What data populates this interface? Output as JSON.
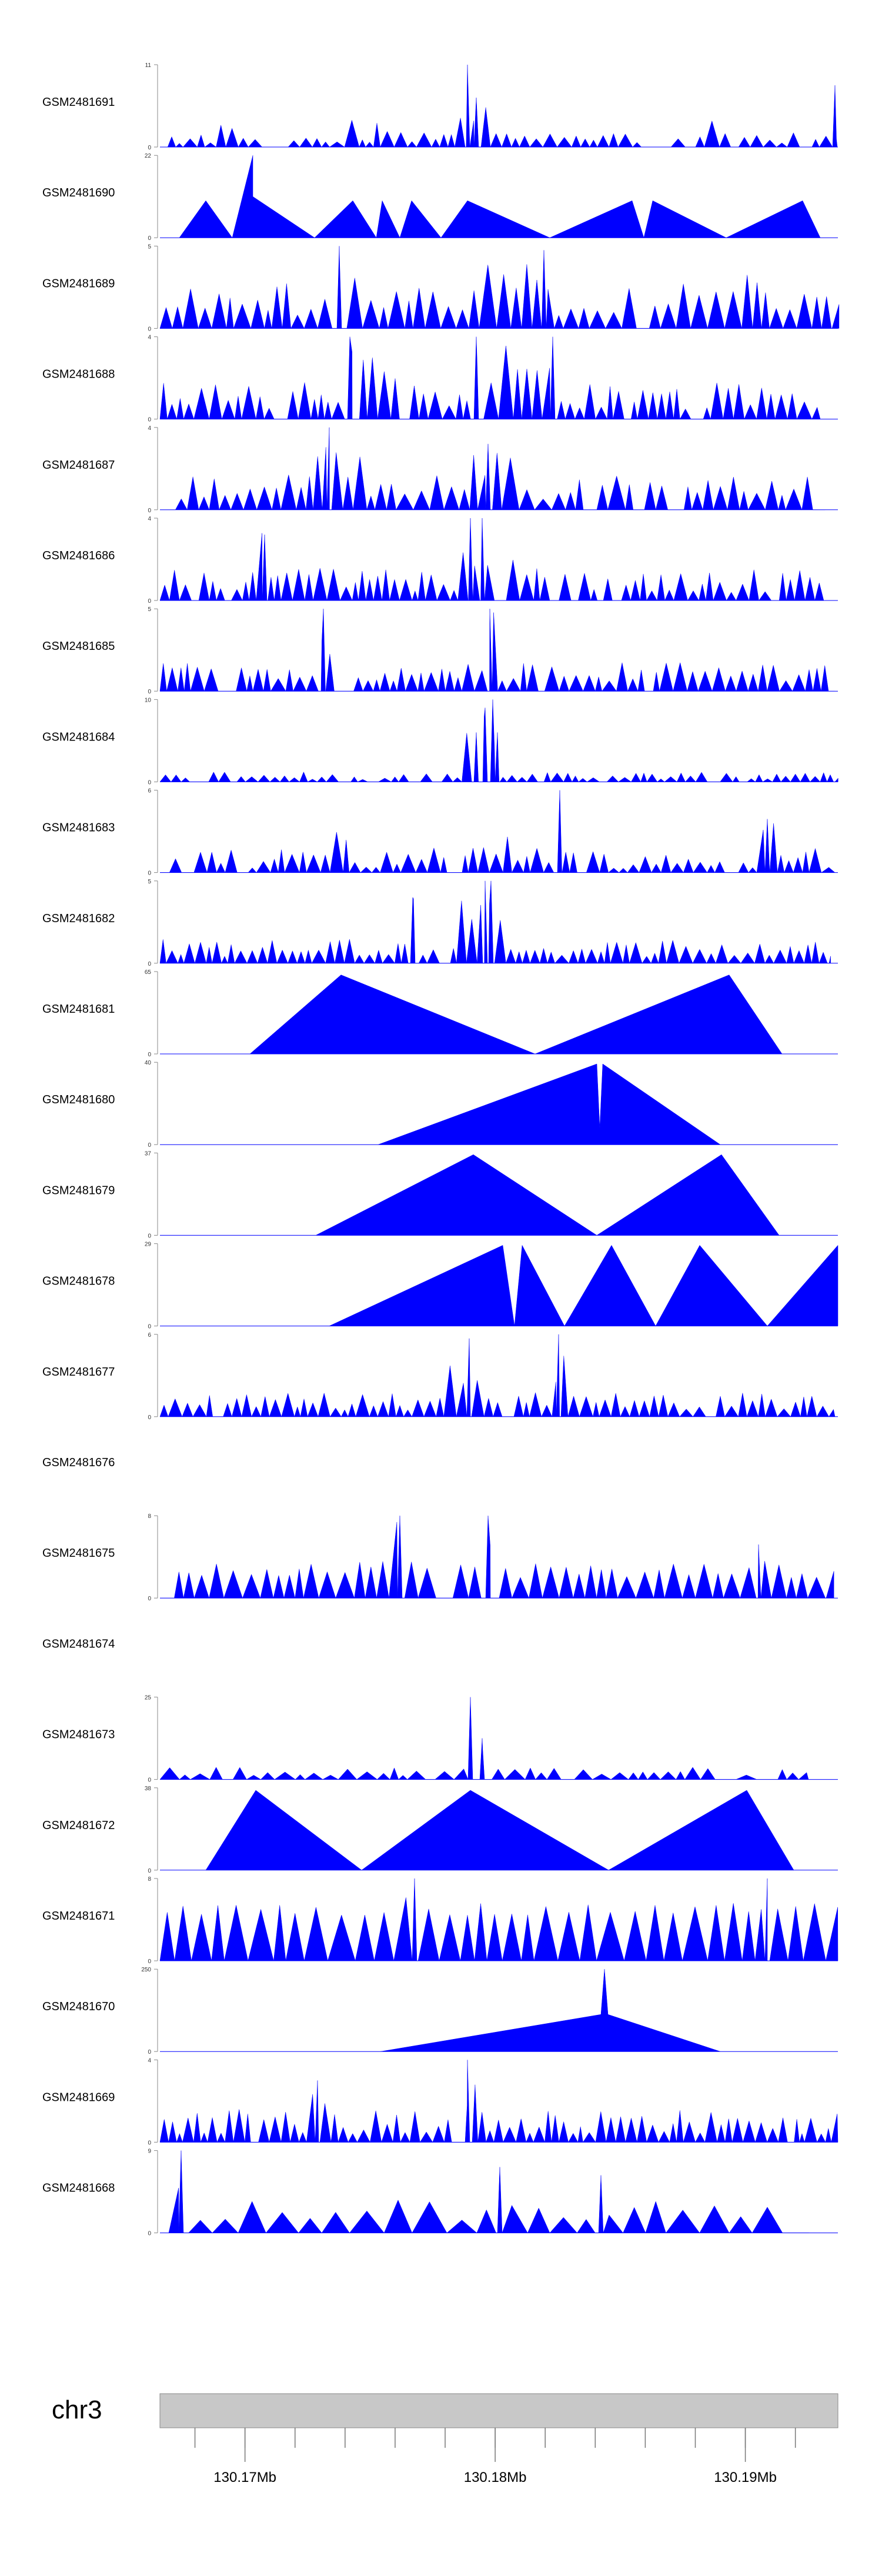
{
  "chart_data": {
    "type": "area",
    "chromosome": "chr3",
    "x_ticks": [
      {
        "value": 130.17,
        "label": "130.17Mb"
      },
      {
        "value": 130.18,
        "label": "130.18Mb"
      },
      {
        "value": 130.19,
        "label": "130.19Mb"
      }
    ],
    "x_range": [
      130.1666,
      130.1937
    ],
    "color": "#0000ff",
    "tracks": [
      {
        "name": "GSM2481691",
        "ymax": 11
      },
      {
        "name": "GSM2481690",
        "ymax": 22
      },
      {
        "name": "GSM2481689",
        "ymax": 5
      },
      {
        "name": "GSM2481688",
        "ymax": 4
      },
      {
        "name": "GSM2481687",
        "ymax": 4
      },
      {
        "name": "GSM2481686",
        "ymax": 4
      },
      {
        "name": "GSM2481685",
        "ymax": 5
      },
      {
        "name": "GSM2481684",
        "ymax": 10
      },
      {
        "name": "GSM2481683",
        "ymax": 6
      },
      {
        "name": "GSM2481682",
        "ymax": 5
      },
      {
        "name": "GSM2481681",
        "ymax": 65
      },
      {
        "name": "GSM2481680",
        "ymax": 40
      },
      {
        "name": "GSM2481679",
        "ymax": 37
      },
      {
        "name": "GSM2481678",
        "ymax": 29
      },
      {
        "name": "GSM2481677",
        "ymax": 6
      },
      {
        "name": "GSM2481676",
        "ymax": null
      },
      {
        "name": "GSM2481675",
        "ymax": 8
      },
      {
        "name": "GSM2481674",
        "ymax": null
      },
      {
        "name": "GSM2481673",
        "ymax": 25
      },
      {
        "name": "GSM2481672",
        "ymax": 38
      },
      {
        "name": "GSM2481671",
        "ymax": 8
      },
      {
        "name": "GSM2481670",
        "ymax": 250
      },
      {
        "name": "GSM2481669",
        "ymax": 4
      },
      {
        "name": "GSM2481668",
        "ymax": 9
      }
    ]
  }
}
